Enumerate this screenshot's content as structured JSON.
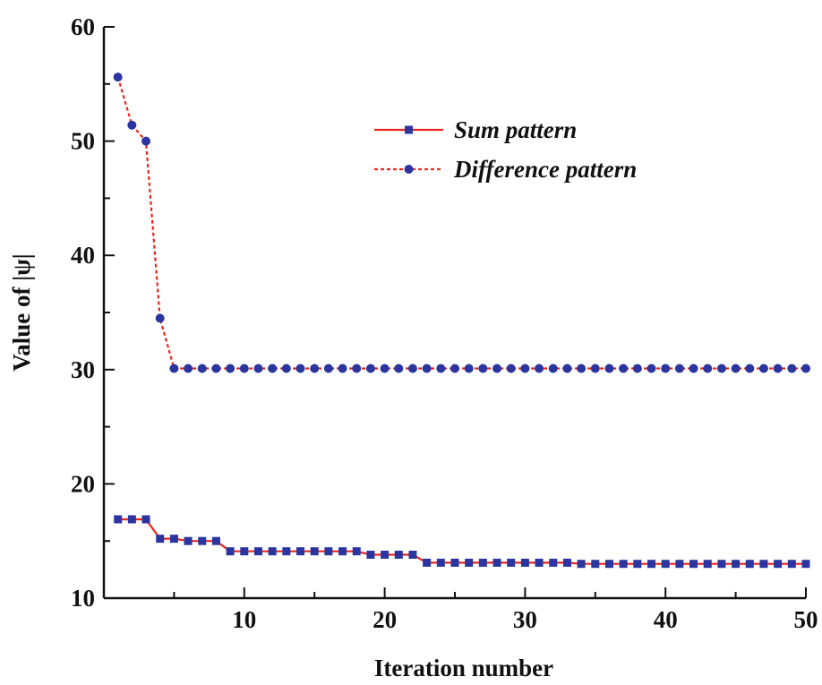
{
  "chart_data": {
    "type": "line",
    "title": "",
    "xlabel": "Iteration number",
    "ylabel": "Value of |ψ|",
    "xlim": [
      0,
      50
    ],
    "ylim": [
      10,
      60
    ],
    "x_ticks": [
      10,
      20,
      30,
      40,
      50
    ],
    "y_ticks": [
      10,
      20,
      30,
      40,
      50,
      60
    ],
    "x_tick_labels": [
      "10",
      "20",
      "30",
      "40",
      "50"
    ],
    "y_tick_labels": [
      "10",
      "20",
      "30",
      "40",
      "50",
      "60"
    ],
    "grid": false,
    "legend_position": "top-right",
    "x": [
      1,
      2,
      3,
      4,
      5,
      6,
      7,
      8,
      9,
      10,
      11,
      12,
      13,
      14,
      15,
      16,
      17,
      18,
      19,
      20,
      21,
      22,
      23,
      24,
      25,
      26,
      27,
      28,
      29,
      30,
      31,
      32,
      33,
      34,
      35,
      36,
      37,
      38,
      39,
      40,
      41,
      42,
      43,
      44,
      45,
      46,
      47,
      48,
      49,
      50
    ],
    "series": [
      {
        "name": "Sum pattern",
        "line_style": "solid",
        "marker": "square",
        "line_color": "#e8261c",
        "marker_color": "#2a35a0",
        "values": [
          16.9,
          16.9,
          16.9,
          15.2,
          15.2,
          15.0,
          15.0,
          15.0,
          14.1,
          14.1,
          14.1,
          14.1,
          14.1,
          14.1,
          14.1,
          14.1,
          14.1,
          14.1,
          13.8,
          13.8,
          13.8,
          13.8,
          13.1,
          13.1,
          13.1,
          13.1,
          13.1,
          13.1,
          13.1,
          13.1,
          13.1,
          13.1,
          13.1,
          13.0,
          13.0,
          13.0,
          13.0,
          13.0,
          13.0,
          13.0,
          13.0,
          13.0,
          13.0,
          13.0,
          13.0,
          13.0,
          13.0,
          13.0,
          13.0,
          13.0
        ]
      },
      {
        "name": "Difference pattern",
        "line_style": "dashed",
        "marker": "circle",
        "line_color": "#e8261c",
        "marker_color": "#2a35a0",
        "values": [
          55.6,
          51.4,
          50.0,
          34.5,
          30.1,
          30.1,
          30.1,
          30.1,
          30.1,
          30.1,
          30.1,
          30.1,
          30.1,
          30.1,
          30.1,
          30.1,
          30.1,
          30.1,
          30.1,
          30.1,
          30.1,
          30.1,
          30.1,
          30.1,
          30.1,
          30.1,
          30.1,
          30.1,
          30.1,
          30.1,
          30.1,
          30.1,
          30.1,
          30.1,
          30.1,
          30.1,
          30.1,
          30.1,
          30.1,
          30.1,
          30.1,
          30.1,
          30.1,
          30.1,
          30.1,
          30.1,
          30.1,
          30.1,
          30.1,
          30.1
        ]
      }
    ]
  }
}
